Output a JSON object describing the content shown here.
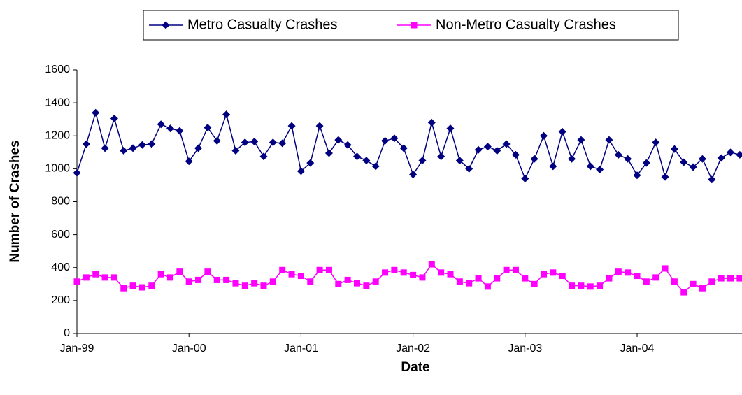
{
  "chart_data": {
    "type": "line",
    "x_label": "Date",
    "y_label": "Number of Crashes",
    "categories": [
      "Jan-99",
      null,
      null,
      null,
      null,
      null,
      null,
      null,
      null,
      null,
      null,
      null,
      "Jan-00",
      null,
      null,
      null,
      null,
      null,
      null,
      null,
      null,
      null,
      null,
      null,
      "Jan-01",
      null,
      null,
      null,
      null,
      null,
      null,
      null,
      null,
      null,
      null,
      null,
      "Jan-02",
      null,
      null,
      null,
      null,
      null,
      null,
      null,
      null,
      null,
      null,
      null,
      "Jan-03",
      null,
      null,
      null,
      null,
      null,
      null,
      null,
      null,
      null,
      null,
      null,
      "Jan-04",
      null,
      null,
      null,
      null,
      null,
      null,
      null,
      null,
      null,
      null,
      null
    ],
    "series": [
      {
        "name": "Metro Casualty Crashes",
        "color": "#000080",
        "marker": "diamond",
        "values": [
          975,
          1150,
          1340,
          1125,
          1305,
          1110,
          1125,
          1145,
          1150,
          1270,
          1245,
          1230,
          1045,
          1125,
          1250,
          1170,
          1330,
          1110,
          1160,
          1165,
          1075,
          1160,
          1155,
          1260,
          985,
          1035,
          1260,
          1095,
          1175,
          1145,
          1075,
          1050,
          1015,
          1170,
          1185,
          1125,
          965,
          1050,
          1280,
          1075,
          1245,
          1050,
          1000,
          1115,
          1135,
          1110,
          1150,
          1085,
          940,
          1060,
          1200,
          1015,
          1225,
          1060,
          1175,
          1015,
          995,
          1175,
          1085,
          1060,
          960,
          1035,
          1160,
          950,
          1120,
          1040,
          1010,
          1060,
          935,
          1065,
          1100,
          1085
        ]
      },
      {
        "name": "Non-Metro Casualty Crashes",
        "color": "#ff00ff",
        "marker": "square",
        "values": [
          315,
          340,
          360,
          340,
          340,
          275,
          290,
          280,
          290,
          360,
          340,
          375,
          315,
          325,
          375,
          325,
          325,
          305,
          290,
          305,
          290,
          315,
          385,
          360,
          350,
          315,
          385,
          385,
          300,
          325,
          305,
          290,
          315,
          370,
          385,
          370,
          355,
          340,
          420,
          370,
          360,
          315,
          305,
          335,
          285,
          335,
          385,
          385,
          335,
          300,
          360,
          370,
          350,
          290,
          290,
          285,
          290,
          335,
          375,
          370,
          350,
          315,
          340,
          395,
          315,
          250,
          300,
          275,
          315,
          335,
          335,
          335
        ]
      }
    ],
    "ylim": [
      0,
      1600
    ],
    "yticks": [
      0,
      200,
      400,
      600,
      800,
      1000,
      1200,
      1400,
      1600
    ],
    "grid": false,
    "legend": "top"
  }
}
